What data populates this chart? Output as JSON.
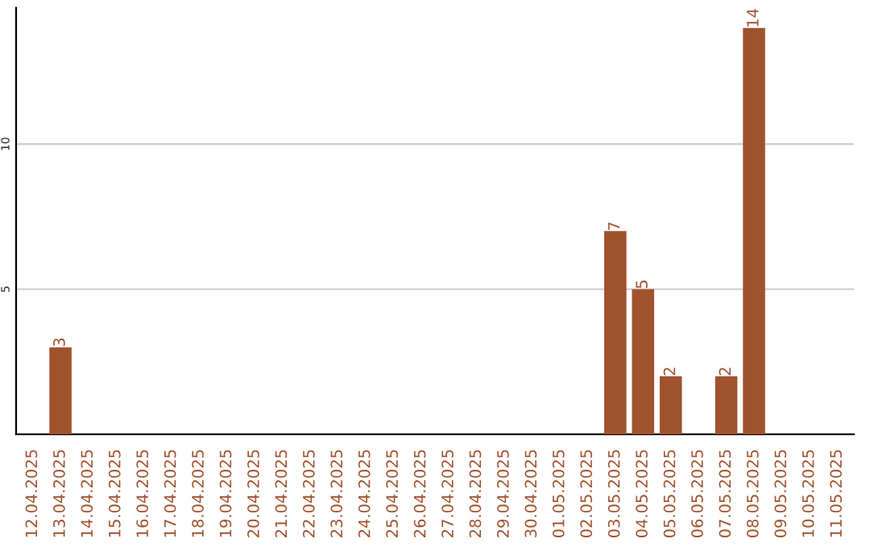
{
  "chart_data": {
    "type": "bar",
    "categories": [
      "12.04.2025",
      "13.04.2025",
      "14.04.2025",
      "15.04.2025",
      "16.04.2025",
      "17.04.2025",
      "18.04.2025",
      "19.04.2025",
      "20.04.2025",
      "21.04.2025",
      "22.04.2025",
      "23.04.2025",
      "24.04.2025",
      "25.04.2025",
      "26.04.2025",
      "27.04.2025",
      "28.04.2025",
      "29.04.2025",
      "30.04.2025",
      "01.05.2025",
      "02.05.2025",
      "03.05.2025",
      "04.05.2025",
      "05.05.2025",
      "06.05.2025",
      "07.05.2025",
      "08.05.2025",
      "09.05.2025",
      "10.05.2025",
      "11.05.2025"
    ],
    "values": [
      0,
      3,
      0,
      0,
      0,
      0,
      0,
      0,
      0,
      0,
      0,
      0,
      0,
      0,
      0,
      0,
      0,
      0,
      0,
      0,
      0,
      7,
      5,
      2,
      0,
      2,
      14,
      0,
      0,
      0
    ],
    "value_labels": [
      null,
      "3",
      null,
      null,
      null,
      null,
      null,
      null,
      null,
      null,
      null,
      null,
      null,
      null,
      null,
      null,
      null,
      null,
      null,
      null,
      null,
      "7",
      "5",
      "2",
      null,
      "2",
      "14",
      null,
      null,
      null
    ],
    "color": "#a0522d",
    "ylim": [
      0,
      14.7
    ],
    "yticks": [
      5,
      10
    ],
    "grid": "y"
  }
}
